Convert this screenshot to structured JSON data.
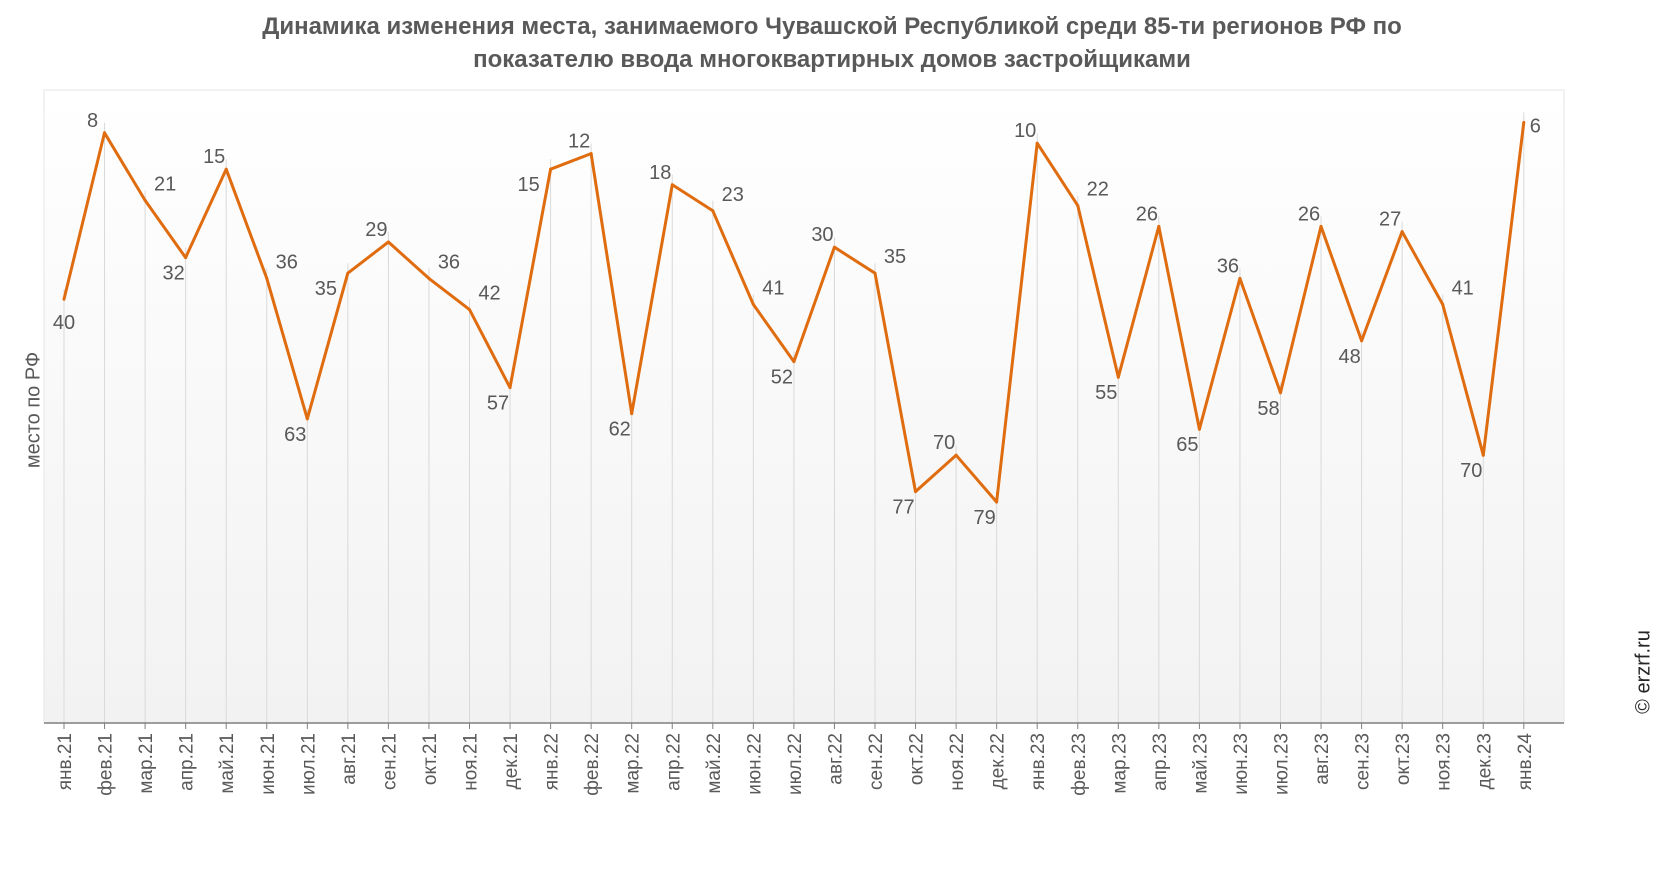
{
  "title": {
    "line1": "Динамика изменения места, занимаемого Чувашской Республикой среди 85-ти регионов РФ по",
    "line2": "показателю ввода многоквартирных домов застройщиками"
  },
  "credit": "© erzrf.ru",
  "colors": {
    "line": "#E06C10",
    "grid": "#D9D9D9",
    "text": "#595959",
    "axis": "#7F7F7F"
  },
  "chart_data": {
    "type": "line",
    "ylabel": "место по РФ",
    "y_inverted": true,
    "ylim": [
      0,
      86
    ],
    "grid": "vertical",
    "categories": [
      "янв.21",
      "фев.21",
      "мар.21",
      "апр.21",
      "май.21",
      "июн.21",
      "июл.21",
      "авг.21",
      "сен.21",
      "окт.21",
      "ноя.21",
      "дек.21",
      "янв.22",
      "фев.22",
      "мар.22",
      "апр.22",
      "май.22",
      "июн.22",
      "июл.22",
      "авг.22",
      "сен.22",
      "окт.22",
      "ноя.22",
      "дек.22",
      "янв.23",
      "фев.23",
      "мар.23",
      "апр.23",
      "май.23",
      "июн.23",
      "июл.23",
      "авг.23",
      "сен.23",
      "окт.23",
      "ноя.23",
      "дек.23",
      "янв.24"
    ],
    "series": [
      {
        "values": [
          40,
          8,
          21,
          32,
          15,
          36,
          63,
          35,
          29,
          36,
          42,
          57,
          15,
          12,
          62,
          18,
          23,
          41,
          52,
          30,
          35,
          77,
          70,
          79,
          10,
          22,
          55,
          26,
          65,
          36,
          58,
          26,
          48,
          27,
          41,
          70,
          6
        ]
      }
    ]
  }
}
